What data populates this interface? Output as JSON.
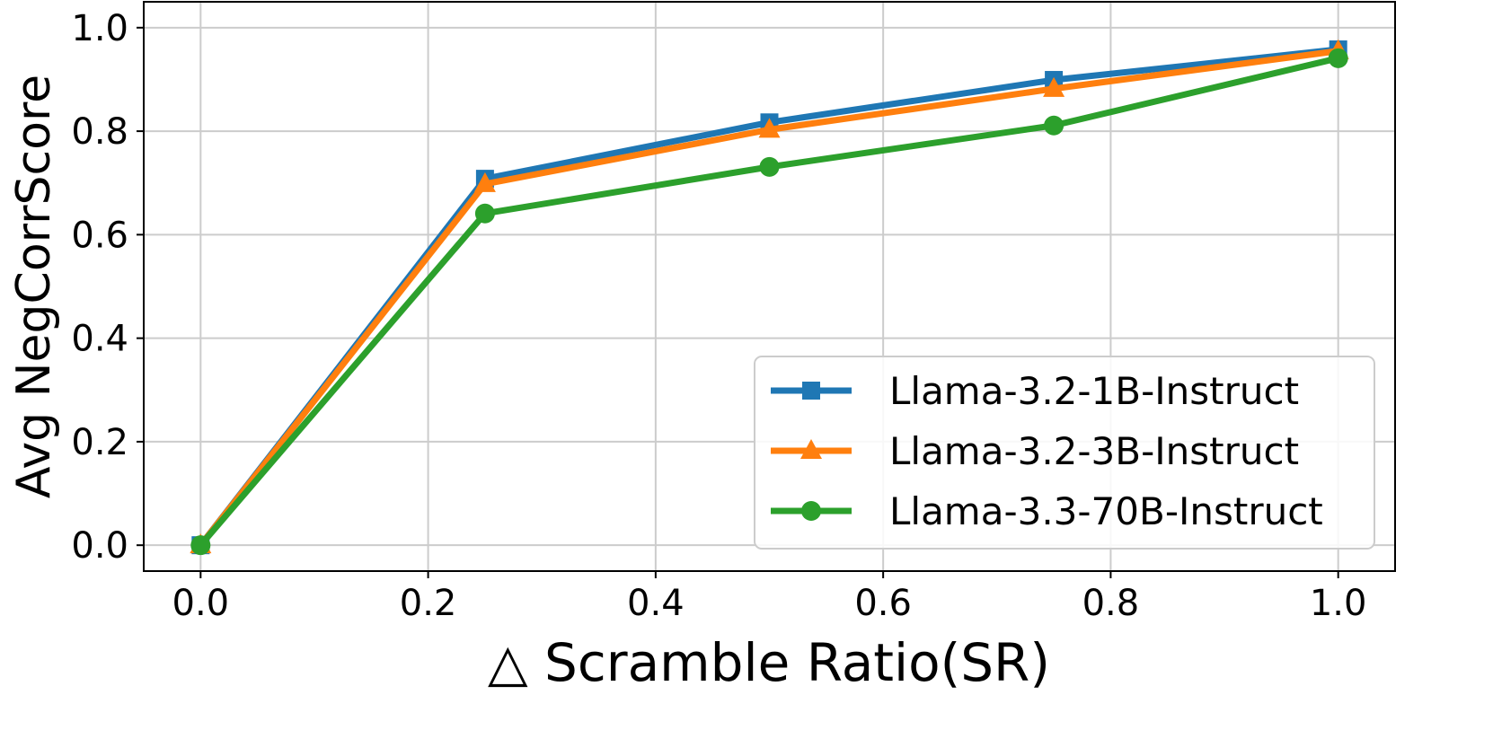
{
  "chart_data": {
    "type": "line",
    "title": "",
    "xlabel": "△ Scramble Ratio(SR)",
    "ylabel": "Avg NegCorrScore",
    "xlim": [
      -0.05,
      1.05
    ],
    "ylim": [
      -0.05,
      1.05
    ],
    "xticks": [
      "0.0",
      "0.2",
      "0.4",
      "0.6",
      "0.8",
      "1.0"
    ],
    "yticks": [
      "0.0",
      "0.2",
      "0.4",
      "0.6",
      "0.8",
      "1.0"
    ],
    "grid": true,
    "legend_position": "lower-right",
    "x": [
      0.0,
      0.25,
      0.5,
      0.75,
      1.0
    ],
    "series": [
      {
        "name": "Llama-3.2-1B-Instruct",
        "color": "#1f77b4",
        "marker": "square",
        "values": [
          0.0,
          0.708,
          0.817,
          0.899,
          0.958
        ]
      },
      {
        "name": "Llama-3.2-3B-Instruct",
        "color": "#ff7f0e",
        "marker": "triangle",
        "values": [
          0.0,
          0.698,
          0.803,
          0.882,
          0.955
        ]
      },
      {
        "name": "Llama-3.3-70B-Instruct",
        "color": "#2ca02c",
        "marker": "circle",
        "values": [
          0.0,
          0.641,
          0.731,
          0.811,
          0.941
        ]
      }
    ]
  }
}
